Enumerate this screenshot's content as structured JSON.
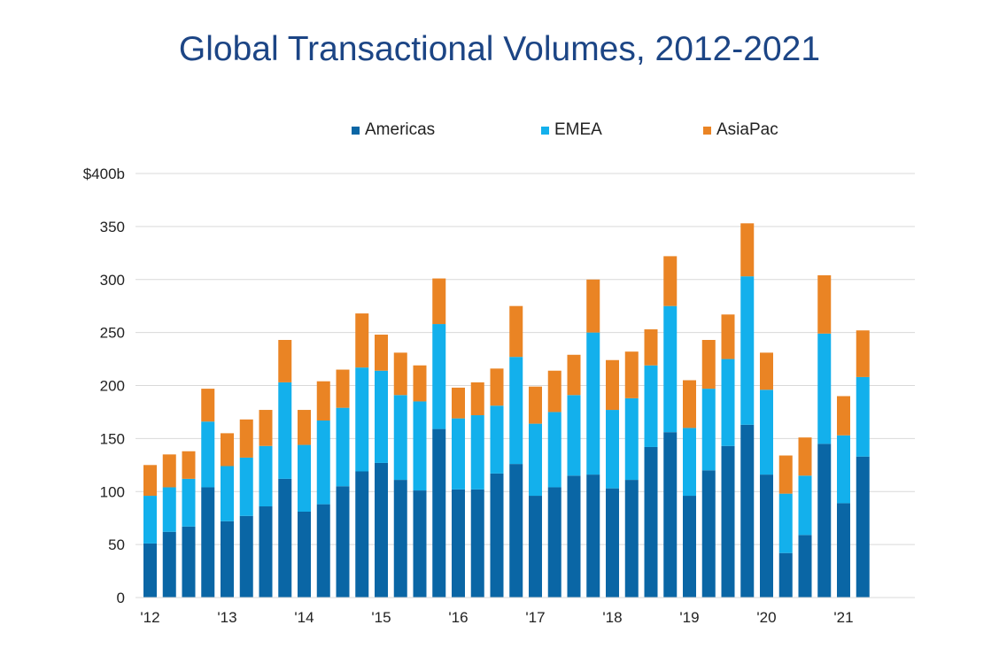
{
  "chart_data": {
    "type": "bar",
    "stacked": true,
    "title": "Global Transactional Volumes, 2012-2021",
    "ylim": [
      0,
      400
    ],
    "yticks": [
      {
        "value": 0,
        "label": "0"
      },
      {
        "value": 50,
        "label": "50"
      },
      {
        "value": 100,
        "label": "100"
      },
      {
        "value": 150,
        "label": "150"
      },
      {
        "value": 200,
        "label": "200"
      },
      {
        "value": 250,
        "label": "250"
      },
      {
        "value": 300,
        "label": "300"
      },
      {
        "value": 350,
        "label": "350"
      },
      {
        "value": 400,
        "label": "$400b"
      }
    ],
    "grid": true,
    "legend_position": "top",
    "categories": [
      "2012 Q1",
      "2012 Q2",
      "2012 Q3",
      "2012 Q4",
      "2013 Q1",
      "2013 Q2",
      "2013 Q3",
      "2013 Q4",
      "2014 Q1",
      "2014 Q2",
      "2014 Q3",
      "2014 Q4",
      "2015 Q1",
      "2015 Q2",
      "2015 Q3",
      "2015 Q4",
      "2016 Q1",
      "2016 Q2",
      "2016 Q3",
      "2016 Q4",
      "2017 Q1",
      "2017 Q2",
      "2017 Q3",
      "2017 Q4",
      "2018 Q1",
      "2018 Q2",
      "2018 Q3",
      "2018 Q4",
      "2019 Q1",
      "2019 Q2",
      "2019 Q3",
      "2019 Q4",
      "2020 Q1",
      "2020 Q2",
      "2020 Q3",
      "2020 Q4",
      "2021 Q1",
      "2021 Q2"
    ],
    "xtick_labels": [
      "'12",
      "'13",
      "'14",
      "'15",
      "'16",
      "'17",
      "'18",
      "'19",
      "'20",
      "'21"
    ],
    "series": [
      {
        "name": "Americas",
        "color": "#0a66a5",
        "values": [
          51,
          62,
          67,
          104,
          72,
          77,
          86,
          112,
          81,
          88,
          105,
          119,
          127,
          111,
          101,
          159,
          102,
          102,
          117,
          126,
          96,
          104,
          115,
          116,
          103,
          111,
          142,
          156,
          96,
          120,
          143,
          163,
          116,
          42,
          59,
          145,
          89,
          133
        ]
      },
      {
        "name": "EMEA",
        "color": "#13b0ec",
        "values": [
          45,
          42,
          45,
          62,
          52,
          55,
          57,
          91,
          63,
          79,
          74,
          98,
          87,
          80,
          84,
          99,
          67,
          70,
          64,
          101,
          68,
          71,
          76,
          134,
          74,
          77,
          77,
          119,
          64,
          77,
          82,
          140,
          80,
          56,
          56,
          104,
          64,
          75
        ]
      },
      {
        "name": "AsiaPac",
        "color": "#ea8424",
        "values": [
          29,
          31,
          26,
          31,
          31,
          36,
          34,
          40,
          33,
          37,
          36,
          51,
          34,
          40,
          34,
          43,
          29,
          31,
          35,
          48,
          35,
          39,
          38,
          50,
          47,
          44,
          34,
          47,
          45,
          46,
          42,
          50,
          35,
          36,
          36,
          55,
          37,
          44
        ]
      }
    ]
  }
}
